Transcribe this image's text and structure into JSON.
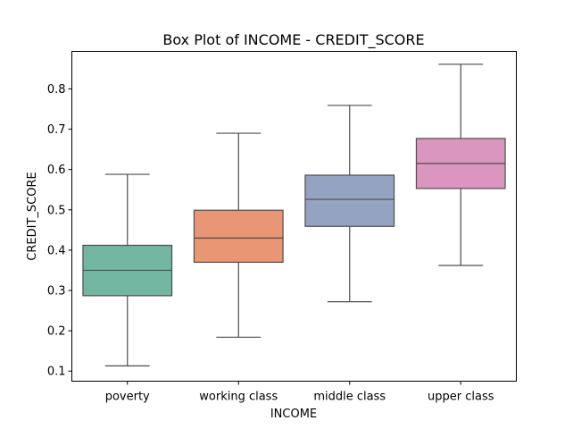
{
  "chart_data": {
    "type": "box",
    "title": "Box Plot of INCOME - CREDIT_SCORE",
    "xlabel": "INCOME",
    "ylabel": "CREDIT_SCORE",
    "ylim": [
      0.075,
      0.893
    ],
    "yticks": [
      "0.1",
      "0.2",
      "0.3",
      "0.4",
      "0.5",
      "0.6",
      "0.7",
      "0.8"
    ],
    "grid": false,
    "categories": [
      "poverty",
      "working class",
      "middle class",
      "upper class"
    ],
    "boxes": [
      {
        "category": "poverty",
        "min": 0.113,
        "q1": 0.287,
        "median": 0.35,
        "q3": 0.412,
        "max": 0.588,
        "color": "#72b6a1"
      },
      {
        "category": "working class",
        "min": 0.184,
        "q1": 0.37,
        "median": 0.43,
        "q3": 0.499,
        "max": 0.69,
        "color": "#e99675"
      },
      {
        "category": "middle class",
        "min": 0.272,
        "q1": 0.459,
        "median": 0.526,
        "q3": 0.586,
        "max": 0.759,
        "color": "#95a3c3"
      },
      {
        "category": "upper class",
        "min": 0.362,
        "q1": 0.553,
        "median": 0.615,
        "q3": 0.677,
        "max": 0.861,
        "color": "#db96c0"
      }
    ],
    "line_color": "#4d4d4d"
  }
}
